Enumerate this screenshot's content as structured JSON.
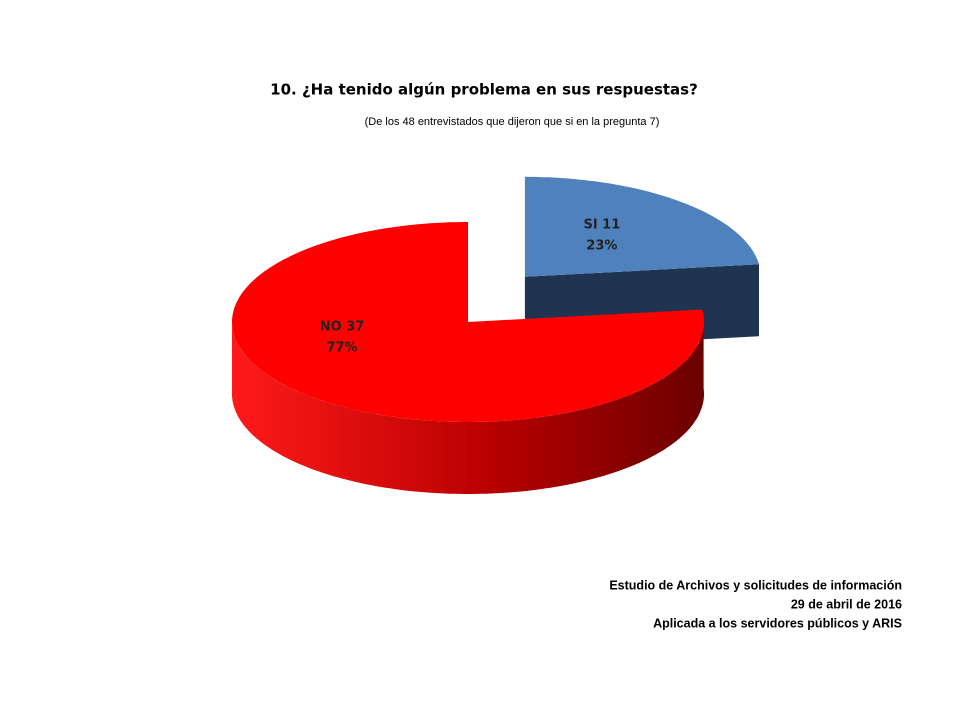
{
  "chart_data": {
    "type": "pie3d",
    "title": "10. ¿Ha tenido algún problema en sus respuestas?",
    "subtitle": "(De los 48 entrevistados que dijeron que si en la pregunta 7)",
    "values": [
      23,
      77
    ],
    "value_labels": [
      "23%",
      "77%"
    ],
    "counts": [
      11,
      37
    ],
    "count_labels": [
      "SI 11",
      "NO 37"
    ],
    "colors": [
      "#4f81bd",
      "#ff0000"
    ],
    "side_colors": [
      "#1f3450",
      "#8b0000"
    ],
    "exploded": [
      true,
      false
    ],
    "footnote": [
      "Estudio de Archivos y solicitudes de información",
      "29 de abril de 2016",
      "Aplicada a los servidores públicos y ARIS"
    ]
  }
}
